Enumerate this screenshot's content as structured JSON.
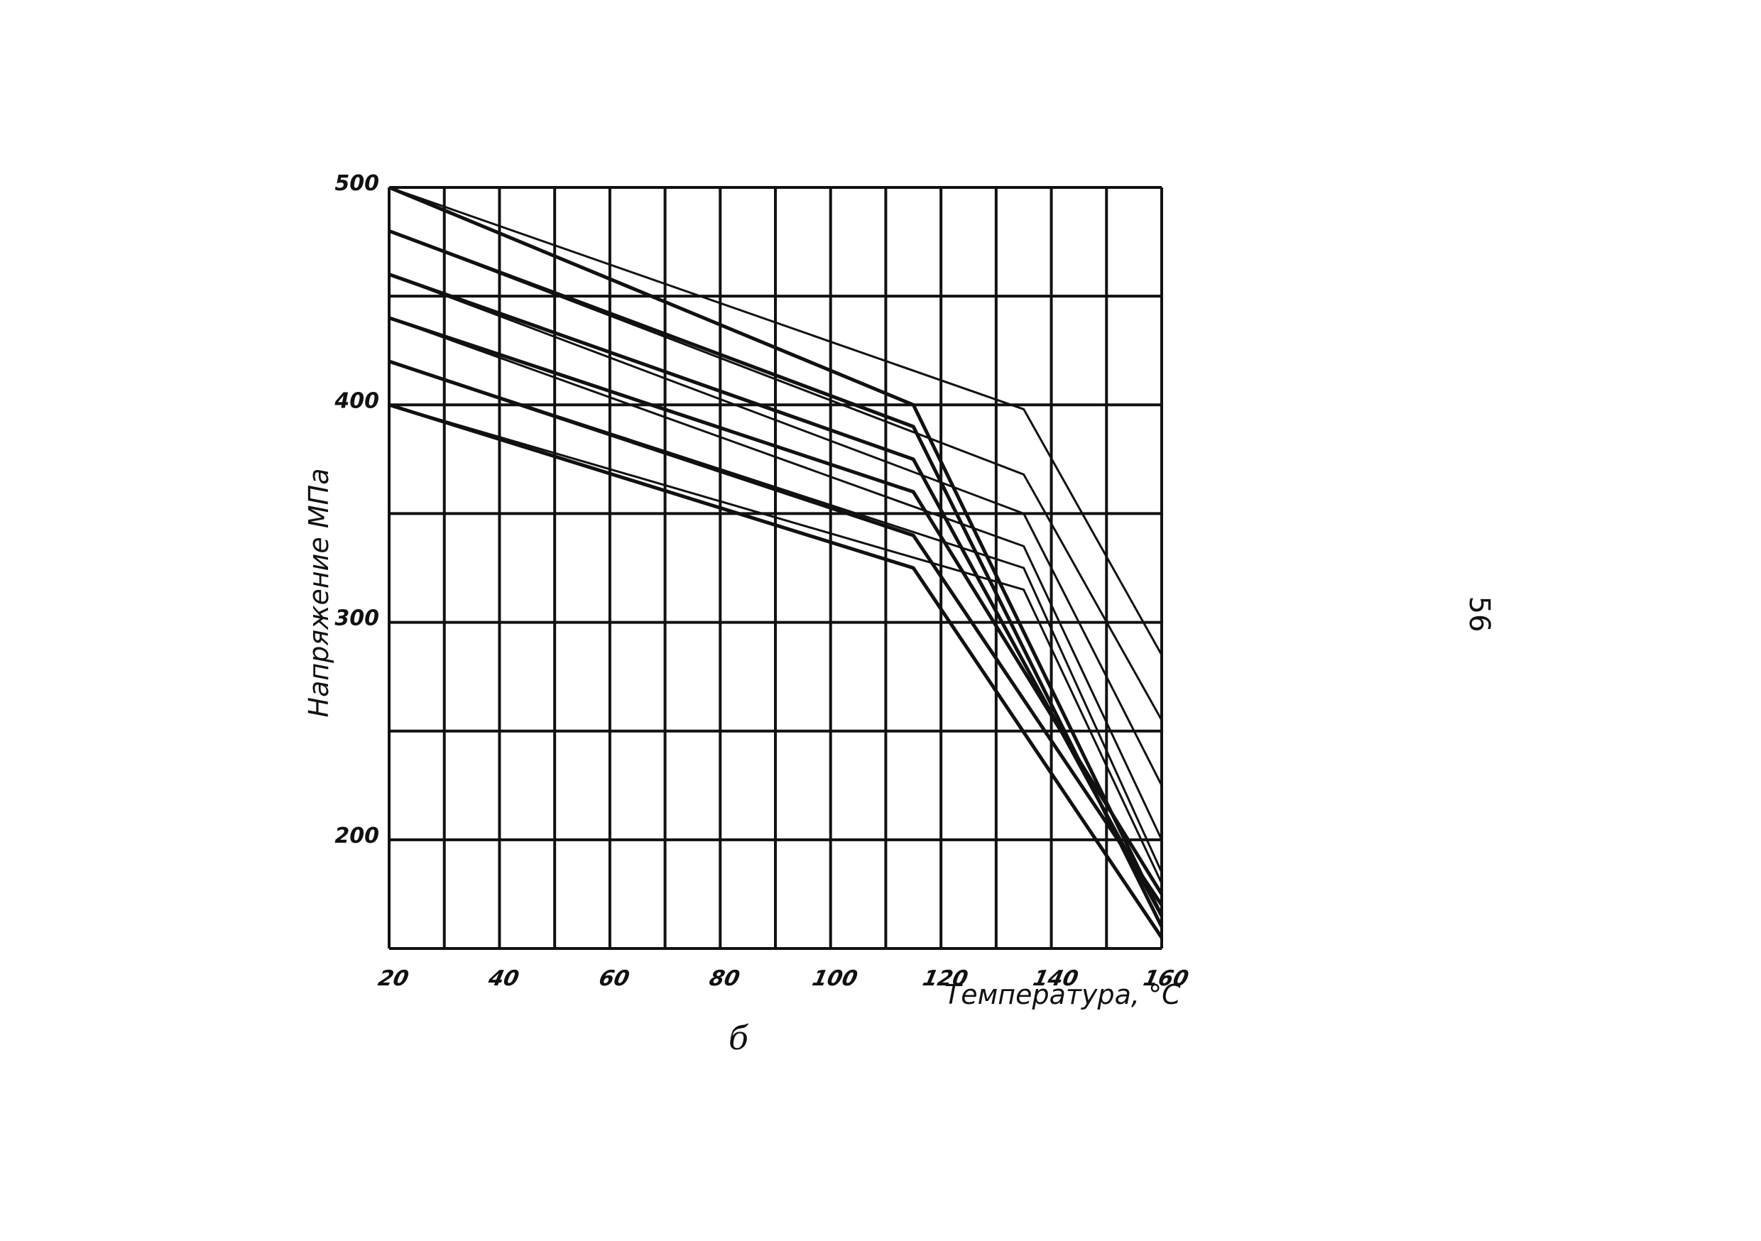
{
  "page_number": "56",
  "caption": "б",
  "chart_data": {
    "type": "line",
    "title": "",
    "xlabel": "Температура, °С",
    "ylabel": "Напряжение МПа",
    "xlim": [
      20,
      160
    ],
    "ylim": [
      150,
      500
    ],
    "x_ticks": [
      20,
      40,
      60,
      80,
      100,
      120,
      140,
      160
    ],
    "x_tick_labels": [
      "20",
      "40",
      "60",
      "80",
      "100",
      "120",
      "140",
      "160"
    ],
    "y_ticks": [
      200,
      300,
      400,
      500
    ],
    "y_tick_labels": [
      "200",
      "300",
      "400",
      "500"
    ],
    "grid": true,
    "line_color": "#111111",
    "series": [
      {
        "x": [
          20,
          115,
          160
        ],
        "y": [
          500,
          400,
          165
        ]
      },
      {
        "x": [
          20,
          115,
          160
        ],
        "y": [
          480,
          390,
          160
        ]
      },
      {
        "x": [
          20,
          115,
          160
        ],
        "y": [
          460,
          375,
          165
        ]
      },
      {
        "x": [
          20,
          115,
          160
        ],
        "y": [
          440,
          360,
          175
        ]
      },
      {
        "x": [
          20,
          115,
          160
        ],
        "y": [
          420,
          340,
          170
        ]
      },
      {
        "x": [
          20,
          115,
          160
        ],
        "y": [
          400,
          325,
          155
        ]
      },
      {
        "x": [
          20,
          135,
          160
        ],
        "y": [
          500,
          398,
          285
        ]
      },
      {
        "x": [
          20,
          135,
          160
        ],
        "y": [
          480,
          368,
          255
        ]
      },
      {
        "x": [
          20,
          135,
          160
        ],
        "y": [
          460,
          350,
          225
        ]
      },
      {
        "x": [
          20,
          135,
          160
        ],
        "y": [
          440,
          335,
          200
        ]
      },
      {
        "x": [
          20,
          135,
          160
        ],
        "y": [
          420,
          325,
          185
        ]
      },
      {
        "x": [
          20,
          135,
          160
        ],
        "y": [
          400,
          315,
          180
        ]
      }
    ]
  }
}
